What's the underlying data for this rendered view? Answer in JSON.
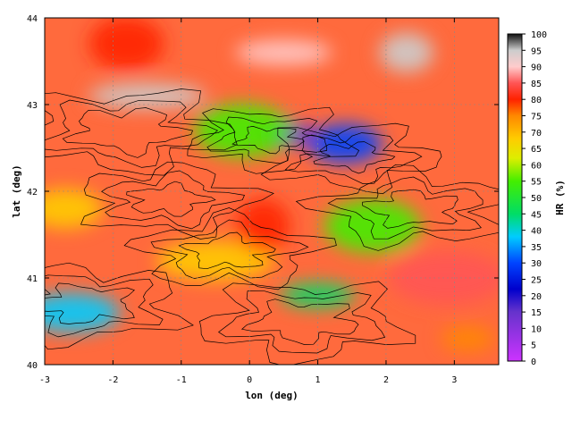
{
  "chart_data": {
    "type": "heatmap",
    "title": "",
    "xlabel": "lon (deg)",
    "ylabel": "lat (deg)",
    "xlim": [
      -3,
      3.65
    ],
    "ylim": [
      40,
      44
    ],
    "x_ticks": [
      -3,
      -2,
      -1,
      0,
      1,
      2,
      3
    ],
    "x_tick_labels": [
      "-3",
      "-2",
      "-1",
      "0",
      "1",
      "2",
      "3"
    ],
    "y_ticks": [
      40,
      41,
      42,
      43,
      44
    ],
    "y_tick_labels": [
      "40",
      "41",
      "42",
      "43",
      "44"
    ],
    "grid": true,
    "colorbar": {
      "label": "HR (%)",
      "range": [
        0,
        100
      ],
      "ticks": [
        0,
        5,
        10,
        15,
        20,
        25,
        30,
        35,
        40,
        45,
        50,
        55,
        60,
        65,
        70,
        75,
        80,
        85,
        90,
        95,
        100
      ],
      "tick_labels": [
        "0",
        "5",
        "10",
        "15",
        "20",
        "25",
        "30",
        "35",
        "40",
        "45",
        "50",
        "55",
        "60",
        "65",
        "70",
        "75",
        "80",
        "85",
        "90",
        "95",
        "100"
      ],
      "stops": [
        {
          "v": 0,
          "color": "#cc33ff"
        },
        {
          "v": 15,
          "color": "#6633cc"
        },
        {
          "v": 22,
          "color": "#0000cc"
        },
        {
          "v": 30,
          "color": "#0044ff"
        },
        {
          "v": 38,
          "color": "#00ccff"
        },
        {
          "v": 45,
          "color": "#00dd66"
        },
        {
          "v": 55,
          "color": "#44ee00"
        },
        {
          "v": 62,
          "color": "#ddee00"
        },
        {
          "v": 68,
          "color": "#ffcc00"
        },
        {
          "v": 75,
          "color": "#ff8800"
        },
        {
          "v": 80,
          "color": "#ff2200"
        },
        {
          "v": 85,
          "color": "#ff5555"
        },
        {
          "v": 90,
          "color": "#ffcccc"
        },
        {
          "v": 95,
          "color": "#cccccc"
        },
        {
          "v": 100,
          "color": "#111111"
        }
      ]
    },
    "field": {
      "description_free": true,
      "regions": [
        {
          "lon": 0.6,
          "lat": 42.65,
          "hr": 20
        },
        {
          "lon": 1.4,
          "lat": 42.55,
          "hr": 35
        },
        {
          "lon": -0.1,
          "lat": 42.7,
          "hr": 60
        },
        {
          "lon": -1.5,
          "lat": 43.1,
          "hr": 97
        },
        {
          "lon": 2.3,
          "lat": 43.6,
          "hr": 100
        },
        {
          "lon": -1.8,
          "lat": 43.7,
          "hr": 85
        },
        {
          "lon": 0.5,
          "lat": 43.6,
          "hr": 92
        },
        {
          "lon": -0.5,
          "lat": 41.2,
          "hr": 75
        },
        {
          "lon": 0.2,
          "lat": 41.6,
          "hr": 82
        },
        {
          "lon": 1.0,
          "lat": 40.8,
          "hr": 50
        },
        {
          "lon": -2.6,
          "lat": 40.6,
          "hr": 42
        },
        {
          "lon": 2.9,
          "lat": 41.0,
          "hr": 88
        },
        {
          "lon": 3.2,
          "lat": 40.3,
          "hr": 80
        },
        {
          "lon": -2.7,
          "lat": 41.8,
          "hr": 70
        },
        {
          "lon": 1.8,
          "lat": 41.6,
          "hr": 60
        }
      ]
    }
  }
}
